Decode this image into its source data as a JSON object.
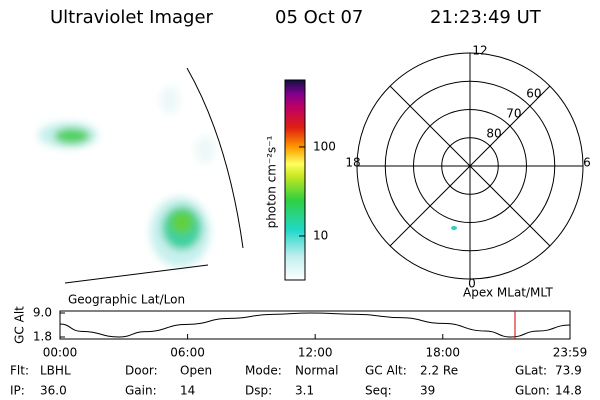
{
  "header": {
    "title": "Ultraviolet Imager",
    "date": "05 Oct 07",
    "time": "21:23:49 UT"
  },
  "image_panel": {
    "label": "Geographic Lat/Lon"
  },
  "colorbar": {
    "label": "photon cm⁻²s⁻¹",
    "log_scale": true,
    "lim": [
      3.2,
      565
    ],
    "ticks": [
      10,
      100
    ]
  },
  "polar_panel": {
    "label": "Apex MLat/MLT",
    "lat_lim": [
      50,
      90
    ],
    "lat_ticks": [
      60,
      70,
      80
    ],
    "hour_labels": [
      "12",
      "18",
      "6",
      "0"
    ]
  },
  "altitude_plot": {
    "ylabel": "GC Alt",
    "ylim": [
      1.8,
      9.0
    ],
    "yticks": [
      {
        "value": 9.0,
        "label": "9.0"
      },
      {
        "value": 1.8,
        "label": "1.8"
      }
    ],
    "xlim": [
      0,
      23.983
    ],
    "xticks": [
      {
        "value": 0,
        "label": "00:00"
      },
      {
        "value": 6,
        "label": "06:00"
      },
      {
        "value": 12,
        "label": "12:00"
      },
      {
        "value": 18,
        "label": "18:00"
      },
      {
        "value": 23.983,
        "label": "23:59"
      }
    ],
    "x": [
      0,
      1,
      2.8,
      4,
      6,
      8,
      10,
      11.8,
      14,
      16,
      18,
      20,
      21.2,
      22.5,
      23.983
    ],
    "values": [
      5.7,
      3.5,
      1.8,
      3.4,
      5.6,
      7.4,
      8.6,
      9.0,
      8.6,
      7.6,
      5.9,
      3.6,
      1.8,
      3.6,
      5.4
    ],
    "line_color": "#000000",
    "current_time": 21.397,
    "marker_color": "#cc0000"
  },
  "info": [
    {
      "label": "Flt:",
      "value": "LBHL"
    },
    {
      "label": "IP:",
      "value": "36.0"
    },
    {
      "label": "Door:",
      "value": "Open"
    },
    {
      "label": "Gain:",
      "value": "14"
    },
    {
      "label": "Mode:",
      "value": "Normal"
    },
    {
      "label": "Dsp:",
      "value": "3.1"
    },
    {
      "label": "GC Alt:",
      "value": "2.2 Re"
    },
    {
      "label": "Seq:",
      "value": "39"
    },
    {
      "label": "GLat:",
      "value": "73.9"
    },
    {
      "label": "GLon:",
      "value": "14.8"
    }
  ]
}
